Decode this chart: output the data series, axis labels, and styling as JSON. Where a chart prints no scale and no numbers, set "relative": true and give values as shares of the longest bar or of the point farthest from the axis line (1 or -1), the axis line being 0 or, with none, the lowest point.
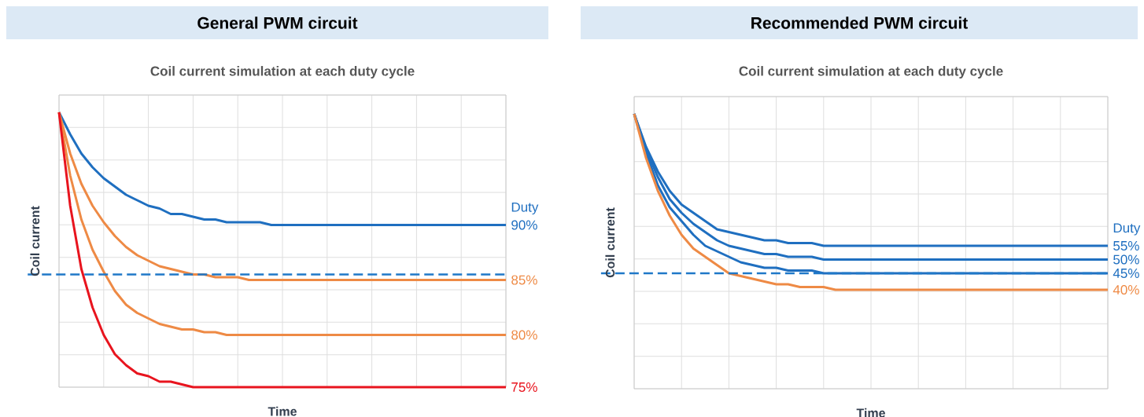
{
  "chart_data": [
    {
      "type": "line",
      "title": "General PWM circuit",
      "subtitle": "Coil current simulation at each duty cycle",
      "xlabel": "Time",
      "ylabel": "Coil current",
      "legend_title": "Duty",
      "relative": true,
      "grid": true,
      "line_style": "solid",
      "categories": [
        null,
        null,
        null,
        null,
        null,
        null,
        null,
        null,
        null,
        null,
        null,
        null,
        null,
        null,
        null,
        null,
        null,
        null,
        null,
        null,
        null,
        null,
        null,
        null,
        null,
        null,
        null,
        null,
        null,
        null,
        null,
        null,
        null,
        null,
        null,
        null,
        null,
        null,
        null,
        null,
        null
      ],
      "ref_lines": [
        {
          "axis": "y",
          "value": 0.41,
          "color": "#1f78c8",
          "line_style": "dashed"
        }
      ],
      "series": [
        {
          "name": "90%",
          "color": "#1f6fc0",
          "values": [
            1.0,
            0.92,
            0.85,
            0.8,
            0.76,
            0.73,
            0.7,
            0.68,
            0.66,
            0.65,
            0.63,
            0.63,
            0.62,
            0.61,
            0.61,
            0.6,
            0.6,
            0.6,
            0.6,
            0.59,
            0.59,
            0.59,
            0.59,
            0.59,
            0.59,
            0.59,
            0.59,
            0.59,
            0.59,
            0.59,
            0.59,
            0.59,
            0.59,
            0.59,
            0.59,
            0.59,
            0.59,
            0.59,
            0.59,
            0.59,
            0.59
          ]
        },
        {
          "name": "85%",
          "color": "#ee8a45",
          "values": [
            1.0,
            0.85,
            0.74,
            0.66,
            0.6,
            0.55,
            0.51,
            0.48,
            0.46,
            0.44,
            0.43,
            0.42,
            0.41,
            0.41,
            0.4,
            0.4,
            0.4,
            0.39,
            0.39,
            0.39,
            0.39,
            0.39,
            0.39,
            0.39,
            0.39,
            0.39,
            0.39,
            0.39,
            0.39,
            0.39,
            0.39,
            0.39,
            0.39,
            0.39,
            0.39,
            0.39,
            0.39,
            0.39,
            0.39,
            0.39,
            0.39
          ]
        },
        {
          "name": "80%",
          "color": "#ee8a45",
          "values": [
            1.0,
            0.77,
            0.61,
            0.5,
            0.42,
            0.35,
            0.3,
            0.27,
            0.25,
            0.23,
            0.22,
            0.21,
            0.21,
            0.2,
            0.2,
            0.19,
            0.19,
            0.19,
            0.19,
            0.19,
            0.19,
            0.19,
            0.19,
            0.19,
            0.19,
            0.19,
            0.19,
            0.19,
            0.19,
            0.19,
            0.19,
            0.19,
            0.19,
            0.19,
            0.19,
            0.19,
            0.19,
            0.19,
            0.19,
            0.19,
            0.19
          ]
        },
        {
          "name": "75%",
          "color": "#e8141e",
          "values": [
            1.0,
            0.66,
            0.43,
            0.29,
            0.19,
            0.12,
            0.08,
            0.05,
            0.04,
            0.02,
            0.02,
            0.01,
            0,
            0,
            0,
            0,
            0,
            0,
            0,
            0,
            0,
            0,
            0,
            0,
            0,
            0,
            0,
            0,
            0,
            0,
            0,
            0,
            0,
            0,
            0,
            0,
            0,
            0,
            0,
            0,
            0
          ]
        }
      ]
    },
    {
      "type": "line",
      "title": "Recommended PWM circuit",
      "subtitle": "Coil current simulation at each duty cycle",
      "xlabel": "Time",
      "ylabel": "Coil current",
      "legend_title": "Duty",
      "relative": true,
      "grid": true,
      "line_style": "solid",
      "categories": [
        null,
        null,
        null,
        null,
        null,
        null,
        null,
        null,
        null,
        null,
        null,
        null,
        null,
        null,
        null,
        null,
        null,
        null,
        null,
        null,
        null,
        null,
        null,
        null,
        null,
        null,
        null,
        null,
        null,
        null,
        null,
        null,
        null,
        null,
        null,
        null,
        null,
        null,
        null,
        null,
        null
      ],
      "ref_lines": [
        {
          "axis": "y",
          "value": 0.42,
          "color": "#1f78c8",
          "line_style": "dashed"
        }
      ],
      "series": [
        {
          "name": "55%",
          "color": "#1f6fc0",
          "values": [
            1.0,
            0.88,
            0.79,
            0.72,
            0.67,
            0.64,
            0.61,
            0.58,
            0.57,
            0.56,
            0.55,
            0.54,
            0.54,
            0.53,
            0.53,
            0.53,
            0.52,
            0.52,
            0.52,
            0.52,
            0.52,
            0.52,
            0.52,
            0.52,
            0.52,
            0.52,
            0.52,
            0.52,
            0.52,
            0.52,
            0.52,
            0.52,
            0.52,
            0.52,
            0.52,
            0.52,
            0.52,
            0.52,
            0.52,
            0.52,
            0.52
          ]
        },
        {
          "name": "50%",
          "color": "#1f6fc0",
          "values": [
            1.0,
            0.87,
            0.77,
            0.69,
            0.64,
            0.6,
            0.57,
            0.54,
            0.52,
            0.51,
            0.5,
            0.49,
            0.49,
            0.48,
            0.48,
            0.48,
            0.47,
            0.47,
            0.47,
            0.47,
            0.47,
            0.47,
            0.47,
            0.47,
            0.47,
            0.47,
            0.47,
            0.47,
            0.47,
            0.47,
            0.47,
            0.47,
            0.47,
            0.47,
            0.47,
            0.47,
            0.47,
            0.47,
            0.47,
            0.47,
            0.47
          ]
        },
        {
          "name": "45%",
          "color": "#1f6fc0",
          "values": [
            1.0,
            0.86,
            0.74,
            0.66,
            0.61,
            0.56,
            0.52,
            0.5,
            0.48,
            0.46,
            0.45,
            0.44,
            0.44,
            0.43,
            0.43,
            0.43,
            0.42,
            0.42,
            0.42,
            0.42,
            0.42,
            0.42,
            0.42,
            0.42,
            0.42,
            0.42,
            0.42,
            0.42,
            0.42,
            0.42,
            0.42,
            0.42,
            0.42,
            0.42,
            0.42,
            0.42,
            0.42,
            0.42,
            0.42,
            0.42,
            0.42
          ]
        },
        {
          "name": "40%",
          "color": "#ee8a45",
          "values": [
            1.0,
            0.84,
            0.72,
            0.63,
            0.56,
            0.51,
            0.48,
            0.45,
            0.42,
            0.41,
            0.4,
            0.39,
            0.38,
            0.38,
            0.37,
            0.37,
            0.37,
            0.36,
            0.36,
            0.36,
            0.36,
            0.36,
            0.36,
            0.36,
            0.36,
            0.36,
            0.36,
            0.36,
            0.36,
            0.36,
            0.36,
            0.36,
            0.36,
            0.36,
            0.36,
            0.36,
            0.36,
            0.36,
            0.36,
            0.36,
            0.36
          ]
        }
      ]
    }
  ]
}
